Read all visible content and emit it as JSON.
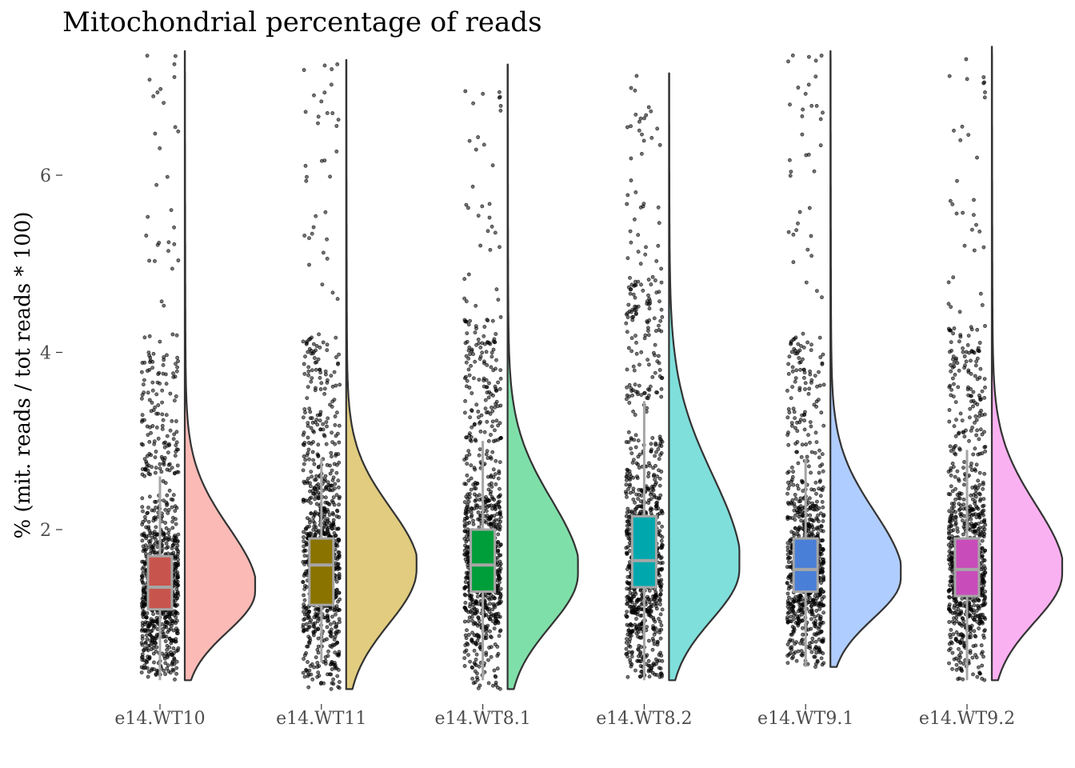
{
  "chart_data": {
    "type": "raincloud",
    "title": "Mitochondrial percentage of reads",
    "xlabel": "",
    "ylabel": "% (mit. reads / tot reads * 100)",
    "ylim": [
      0.2,
      7.5
    ],
    "yticks": [
      2,
      4,
      6
    ],
    "grid": false,
    "legend": "none",
    "categories": [
      "e14.WT10",
      "e14.WT11",
      "e14.WT8.1",
      "e14.WT8.2",
      "e14.WT9.1",
      "e14.WT9.2"
    ],
    "series": [
      {
        "category": "e14.WT10",
        "fill": "#F8766D",
        "box_fill": "#C8554D",
        "point_color": "#000000",
        "min": 0.3,
        "max": 7.4,
        "whisker_low": 0.3,
        "q1": 1.1,
        "median": 1.35,
        "q3": 1.7,
        "whisker_high": 2.6,
        "density_peak": 1.3
      },
      {
        "category": "e14.WT11",
        "fill": "#C49A00",
        "box_fill": "#8B7300",
        "point_color": "#000000",
        "min": 0.2,
        "max": 7.3,
        "whisker_low": 0.5,
        "q1": 1.15,
        "median": 1.6,
        "q3": 1.9,
        "whisker_high": 2.8,
        "density_peak": 1.55
      },
      {
        "category": "e14.WT8.1",
        "fill": "#00C054",
        "box_fill": "#009E3A",
        "point_color": "#000000",
        "min": 0.2,
        "max": 7.25,
        "whisker_low": 0.3,
        "q1": 1.3,
        "median": 1.6,
        "q3": 2.0,
        "whisker_high": 3.0,
        "density_peak": 1.5
      },
      {
        "category": "e14.WT8.2",
        "fill": "#00C0B8",
        "box_fill": "#00A8AE",
        "point_color": "#000000",
        "min": 0.3,
        "max": 7.15,
        "whisker_low": 0.3,
        "q1": 1.35,
        "median": 1.65,
        "q3": 2.15,
        "whisker_high": 3.45,
        "density_peak": 1.55
      },
      {
        "category": "e14.WT9.1",
        "fill": "#619CFF",
        "box_fill": "#4A7FD8",
        "point_color": "#000000",
        "min": 0.45,
        "max": 7.4,
        "whisker_low": 0.45,
        "q1": 1.3,
        "median": 1.55,
        "q3": 1.9,
        "whisker_high": 2.8,
        "density_peak": 1.45
      },
      {
        "category": "e14.WT9.2",
        "fill": "#F564E3",
        "box_fill": "#C84DBA",
        "point_color": "#000000",
        "min": 0.3,
        "max": 7.45,
        "whisker_low": 0.3,
        "q1": 1.25,
        "median": 1.55,
        "q3": 1.9,
        "whisker_high": 2.9,
        "density_peak": 1.5
      }
    ]
  }
}
